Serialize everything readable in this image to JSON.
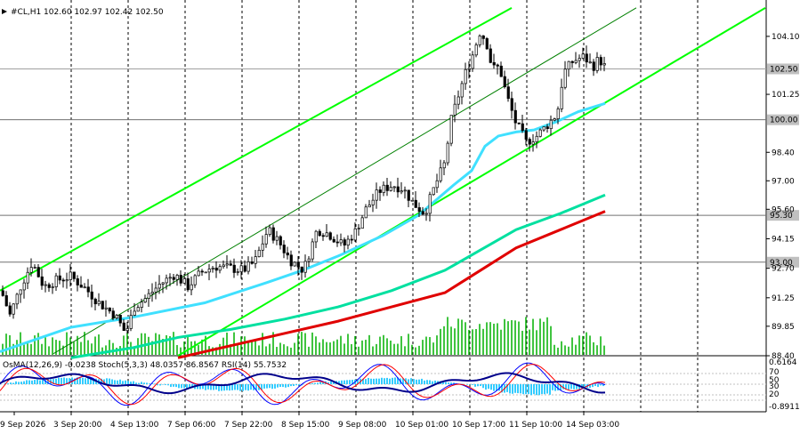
{
  "header": {
    "symbol_line": "#CL,H1  102.60 102.97 102.42 102.50"
  },
  "chart_data": {
    "type": "candlestick",
    "symbol": "#CL",
    "timeframe": "H1",
    "ohlc_last": {
      "open": 102.6,
      "high": 102.97,
      "low": 102.42,
      "close": 102.5
    },
    "ylim": [
      88.4,
      105.8
    ],
    "price_ticks": [
      "104.10",
      "101.25",
      "98.40",
      "97.00",
      "95.60",
      "94.15",
      "92.70",
      "91.25",
      "89.85",
      "88.40"
    ],
    "x_labels": [
      "9 Sep 2026",
      "3 Sep 20:00",
      "4 Sep 13:00",
      "7 Sep 06:00",
      "7 Sep 22:00",
      "8 Sep 15:00",
      "9 Sep 08:00",
      "10 Sep 01:00",
      "10 Sep 17:00",
      "11 Sep 10:00",
      "14 Sep 03:00"
    ],
    "current_price": {
      "value": 102.5,
      "label": "102.50"
    },
    "horizontal_levels": [
      {
        "value": 100.0,
        "label": "100.00"
      },
      {
        "value": 95.3,
        "label": "95.30"
      },
      {
        "value": 93.0,
        "label": "93.00"
      }
    ],
    "grid": true,
    "price_series": {
      "anchors": [
        [
          0,
          91.6
        ],
        [
          10,
          90.4
        ],
        [
          22,
          91.8
        ],
        [
          35,
          93.0
        ],
        [
          48,
          91.8
        ],
        [
          62,
          92.1
        ],
        [
          78,
          92.3
        ],
        [
          95,
          91.7
        ],
        [
          110,
          91.0
        ],
        [
          128,
          90.4
        ],
        [
          140,
          89.5
        ],
        [
          150,
          90.8
        ],
        [
          162,
          91.2
        ],
        [
          178,
          91.9
        ],
        [
          195,
          92.4
        ],
        [
          210,
          91.8
        ],
        [
          225,
          92.5
        ],
        [
          240,
          92.8
        ],
        [
          258,
          92.7
        ],
        [
          272,
          92.6
        ],
        [
          285,
          93.0
        ],
        [
          300,
          94.6
        ],
        [
          312,
          94.0
        ],
        [
          325,
          93.1
        ],
        [
          340,
          92.6
        ],
        [
          355,
          94.6
        ],
        [
          368,
          94.4
        ],
        [
          385,
          93.8
        ],
        [
          398,
          94.5
        ],
        [
          410,
          95.6
        ],
        [
          425,
          96.5
        ],
        [
          440,
          96.8
        ],
        [
          452,
          96.6
        ],
        [
          463,
          95.9
        ],
        [
          476,
          95.4
        ],
        [
          488,
          96.8
        ],
        [
          498,
          97.8
        ],
        [
          506,
          100.0
        ],
        [
          514,
          101.2
        ],
        [
          522,
          102.3
        ],
        [
          530,
          103.2
        ],
        [
          538,
          104.3
        ],
        [
          545,
          103.9
        ],
        [
          552,
          102.5
        ],
        [
          560,
          102.6
        ],
        [
          568,
          101.2
        ],
        [
          578,
          99.9
        ],
        [
          590,
          98.9
        ],
        [
          602,
          99.2
        ],
        [
          615,
          99.8
        ],
        [
          625,
          100.3
        ],
        [
          632,
          102.3
        ],
        [
          643,
          102.9
        ],
        [
          655,
          103.1
        ],
        [
          665,
          102.6
        ],
        [
          672,
          103.0
        ],
        [
          680,
          102.5
        ]
      ],
      "volatility_bars": 11
    },
    "indicators": [
      {
        "name": "channel_upper",
        "color": "#00ff00",
        "points": [
          [
            0,
            91.6
          ],
          [
            575,
            105.5
          ]
        ]
      },
      {
        "name": "channel_lower",
        "color": "#00ff00",
        "points": [
          [
            200,
            88.4
          ],
          [
            860,
            105.5
          ]
        ]
      },
      {
        "name": "channel_mid",
        "color": "#008000",
        "points": [
          [
            60,
            88.5
          ],
          [
            715,
            105.5
          ]
        ]
      },
      {
        "name": "ma_fast",
        "color": "#40e0ff",
        "points": [
          [
            0,
            88.6
          ],
          [
            80,
            89.8
          ],
          [
            150,
            90.3
          ],
          [
            230,
            91.0
          ],
          [
            300,
            92.0
          ],
          [
            340,
            92.6
          ],
          [
            380,
            93.3
          ],
          [
            430,
            94.3
          ],
          [
            470,
            95.3
          ],
          [
            510,
            96.8
          ],
          [
            530,
            97.5
          ],
          [
            545,
            98.7
          ],
          [
            560,
            99.2
          ],
          [
            580,
            99.4
          ],
          [
            600,
            99.5
          ],
          [
            625,
            99.9
          ],
          [
            650,
            100.4
          ],
          [
            680,
            100.8
          ]
        ]
      },
      {
        "name": "ma_mid",
        "color": "#00e0a0",
        "points": [
          [
            80,
            88.3
          ],
          [
            150,
            88.8
          ],
          [
            200,
            89.3
          ],
          [
            260,
            89.7
          ],
          [
            320,
            90.2
          ],
          [
            380,
            90.8
          ],
          [
            440,
            91.6
          ],
          [
            500,
            92.6
          ],
          [
            540,
            93.6
          ],
          [
            580,
            94.6
          ],
          [
            630,
            95.4
          ],
          [
            680,
            96.3
          ]
        ]
      },
      {
        "name": "ma_slow",
        "color": "#e00000",
        "points": [
          [
            200,
            88.3
          ],
          [
            260,
            88.9
          ],
          [
            320,
            89.5
          ],
          [
            380,
            90.1
          ],
          [
            440,
            90.8
          ],
          [
            500,
            91.5
          ],
          [
            540,
            92.6
          ],
          [
            580,
            93.7
          ],
          [
            630,
            94.6
          ],
          [
            680,
            95.5
          ]
        ]
      }
    ]
  },
  "oscillator": {
    "label": "OsMA(12,26,9) -0.0238  Stoch(5,3,3) 48.0357 86.8567  RSI(14) 55.7532",
    "ticks": [
      "0.6164",
      "70",
      "50",
      "30",
      "20",
      "-0.8911"
    ],
    "series": [
      {
        "name": "rsi",
        "color": "#00008b"
      },
      {
        "name": "stoch_main",
        "color": "#0000ff"
      },
      {
        "name": "stoch_signal",
        "color": "#ff0000"
      },
      {
        "name": "osma",
        "color": "#33ccff"
      }
    ]
  },
  "colors": {
    "background": "#ffffff",
    "grid": "#000000",
    "candle": "#000000",
    "volume": "#00b000",
    "price_label_bg": "#c0c0c0"
  }
}
